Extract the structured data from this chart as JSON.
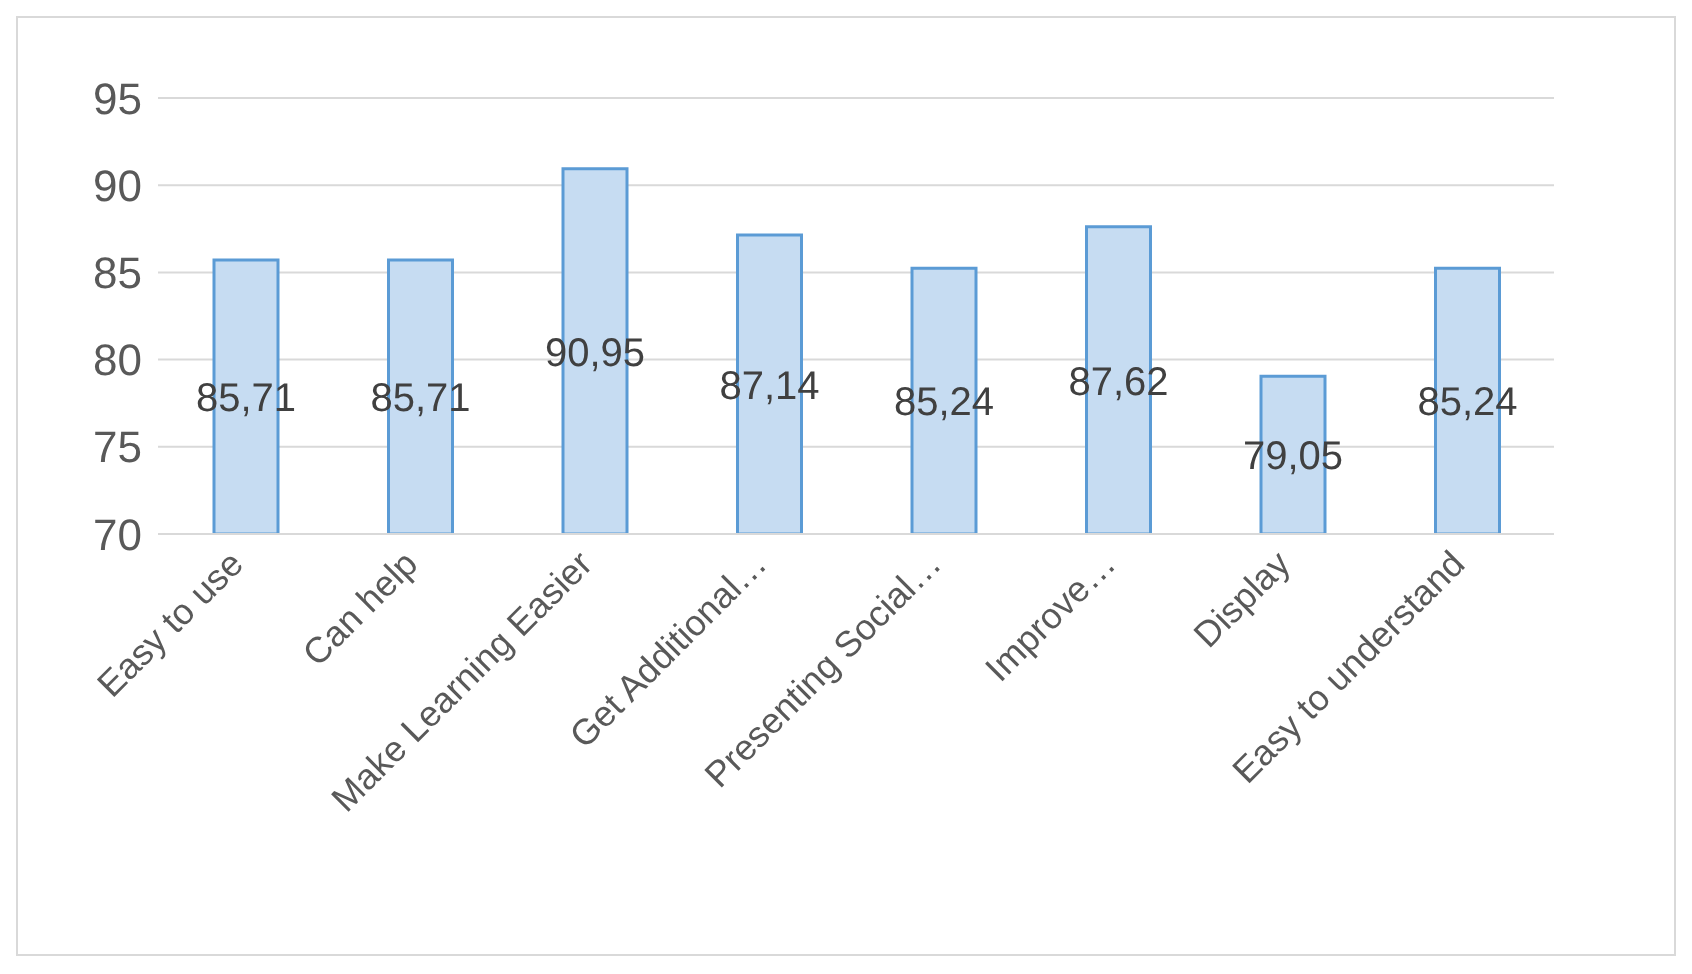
{
  "chart_data": {
    "type": "bar",
    "categories": [
      "Easy to use",
      "Can help",
      "Make Learning Easier",
      "Get Additional…",
      "Presenting Social…",
      "Improve…",
      "Display",
      "Easy to understand"
    ],
    "values": [
      85.71,
      85.71,
      90.95,
      87.14,
      85.24,
      87.62,
      79.05,
      85.24
    ],
    "value_labels": [
      "85,71",
      "85,71",
      "90,95",
      "87,14",
      "85,24",
      "87,62",
      "79,05",
      "85,24"
    ],
    "color": "#c6dcf2",
    "ylim": [
      70,
      95
    ],
    "yticks": [
      70,
      75,
      80,
      85,
      90,
      95
    ],
    "grid": "y"
  }
}
